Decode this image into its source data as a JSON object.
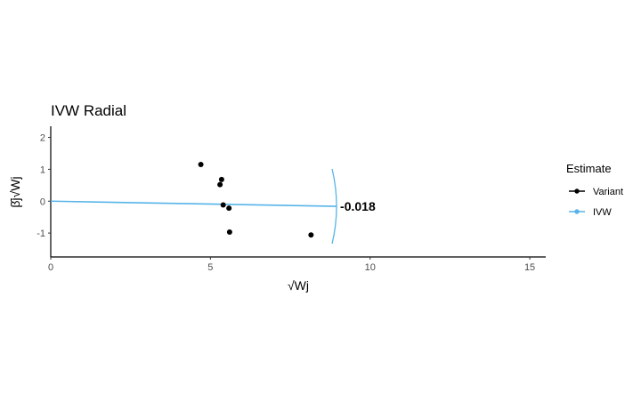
{
  "chart_data": {
    "type": "scatter",
    "title": "IVW Radial",
    "xlabel": "√Wj",
    "ylabel": "β̂j√Wj",
    "xlim": [
      0,
      15.5
    ],
    "ylim": [
      -1.75,
      2.35
    ],
    "x_ticks": [
      "0",
      "5",
      "10",
      "15"
    ],
    "y_ticks": [
      "-1",
      "0",
      "1",
      "2"
    ],
    "grid": false,
    "legend": {
      "title": "Estimate",
      "position": "right",
      "entries": [
        {
          "label": "Variant",
          "color": "#000000"
        },
        {
          "label": "IVW",
          "color": "#56b4e9"
        }
      ]
    },
    "series": [
      {
        "name": "Variant",
        "points": [
          {
            "x": 4.7,
            "y": 1.15
          },
          {
            "x": 5.35,
            "y": 0.68
          },
          {
            "x": 5.3,
            "y": 0.52
          },
          {
            "x": 5.4,
            "y": -0.12
          },
          {
            "x": 5.58,
            "y": -0.22
          },
          {
            "x": 5.6,
            "y": -0.97
          },
          {
            "x": 8.15,
            "y": -1.06
          }
        ]
      },
      {
        "name": "IVW",
        "slope": -0.018,
        "x_range": [
          0,
          8.95
        ],
        "label": "-0.018"
      }
    ],
    "colors": {
      "variant": "#000000",
      "ivw": "#56b4e9"
    }
  }
}
